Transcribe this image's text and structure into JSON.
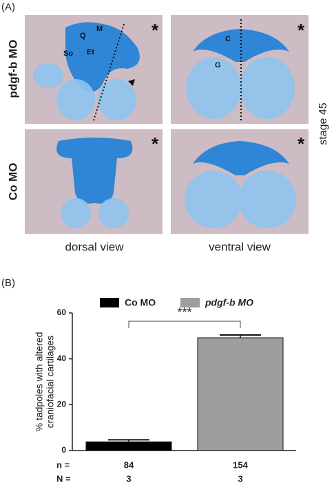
{
  "panel_a": {
    "label": "(A)",
    "rows": [
      "pdgf-b MO",
      "Co MO"
    ],
    "columns": [
      "dorsal view",
      "ventral view"
    ],
    "stage": "stage 45",
    "structure_labels": [
      "Q",
      "M",
      "So",
      "Et",
      "C",
      "G"
    ],
    "asterisk": "*"
  },
  "chart_data": {
    "type": "bar",
    "label": "(B)",
    "series": [
      {
        "name": "Co MO",
        "color": "#000000",
        "values": [
          3.8
        ],
        "errors": [
          0.9
        ]
      },
      {
        "name": "pdgf-b MO",
        "color": "#9e9e9e",
        "values": [
          49.2
        ],
        "errors": [
          1.2
        ]
      }
    ],
    "ylabel": [
      "% tadpoles with altered",
      "craniofacial cartilages"
    ],
    "ylim": [
      0,
      60
    ],
    "yticks": [
      0,
      20,
      40,
      60
    ],
    "annotation": "***",
    "n_label": "n =",
    "n_values": [
      84,
      154
    ],
    "N_label": "N =",
    "N_values": [
      3,
      3
    ]
  }
}
